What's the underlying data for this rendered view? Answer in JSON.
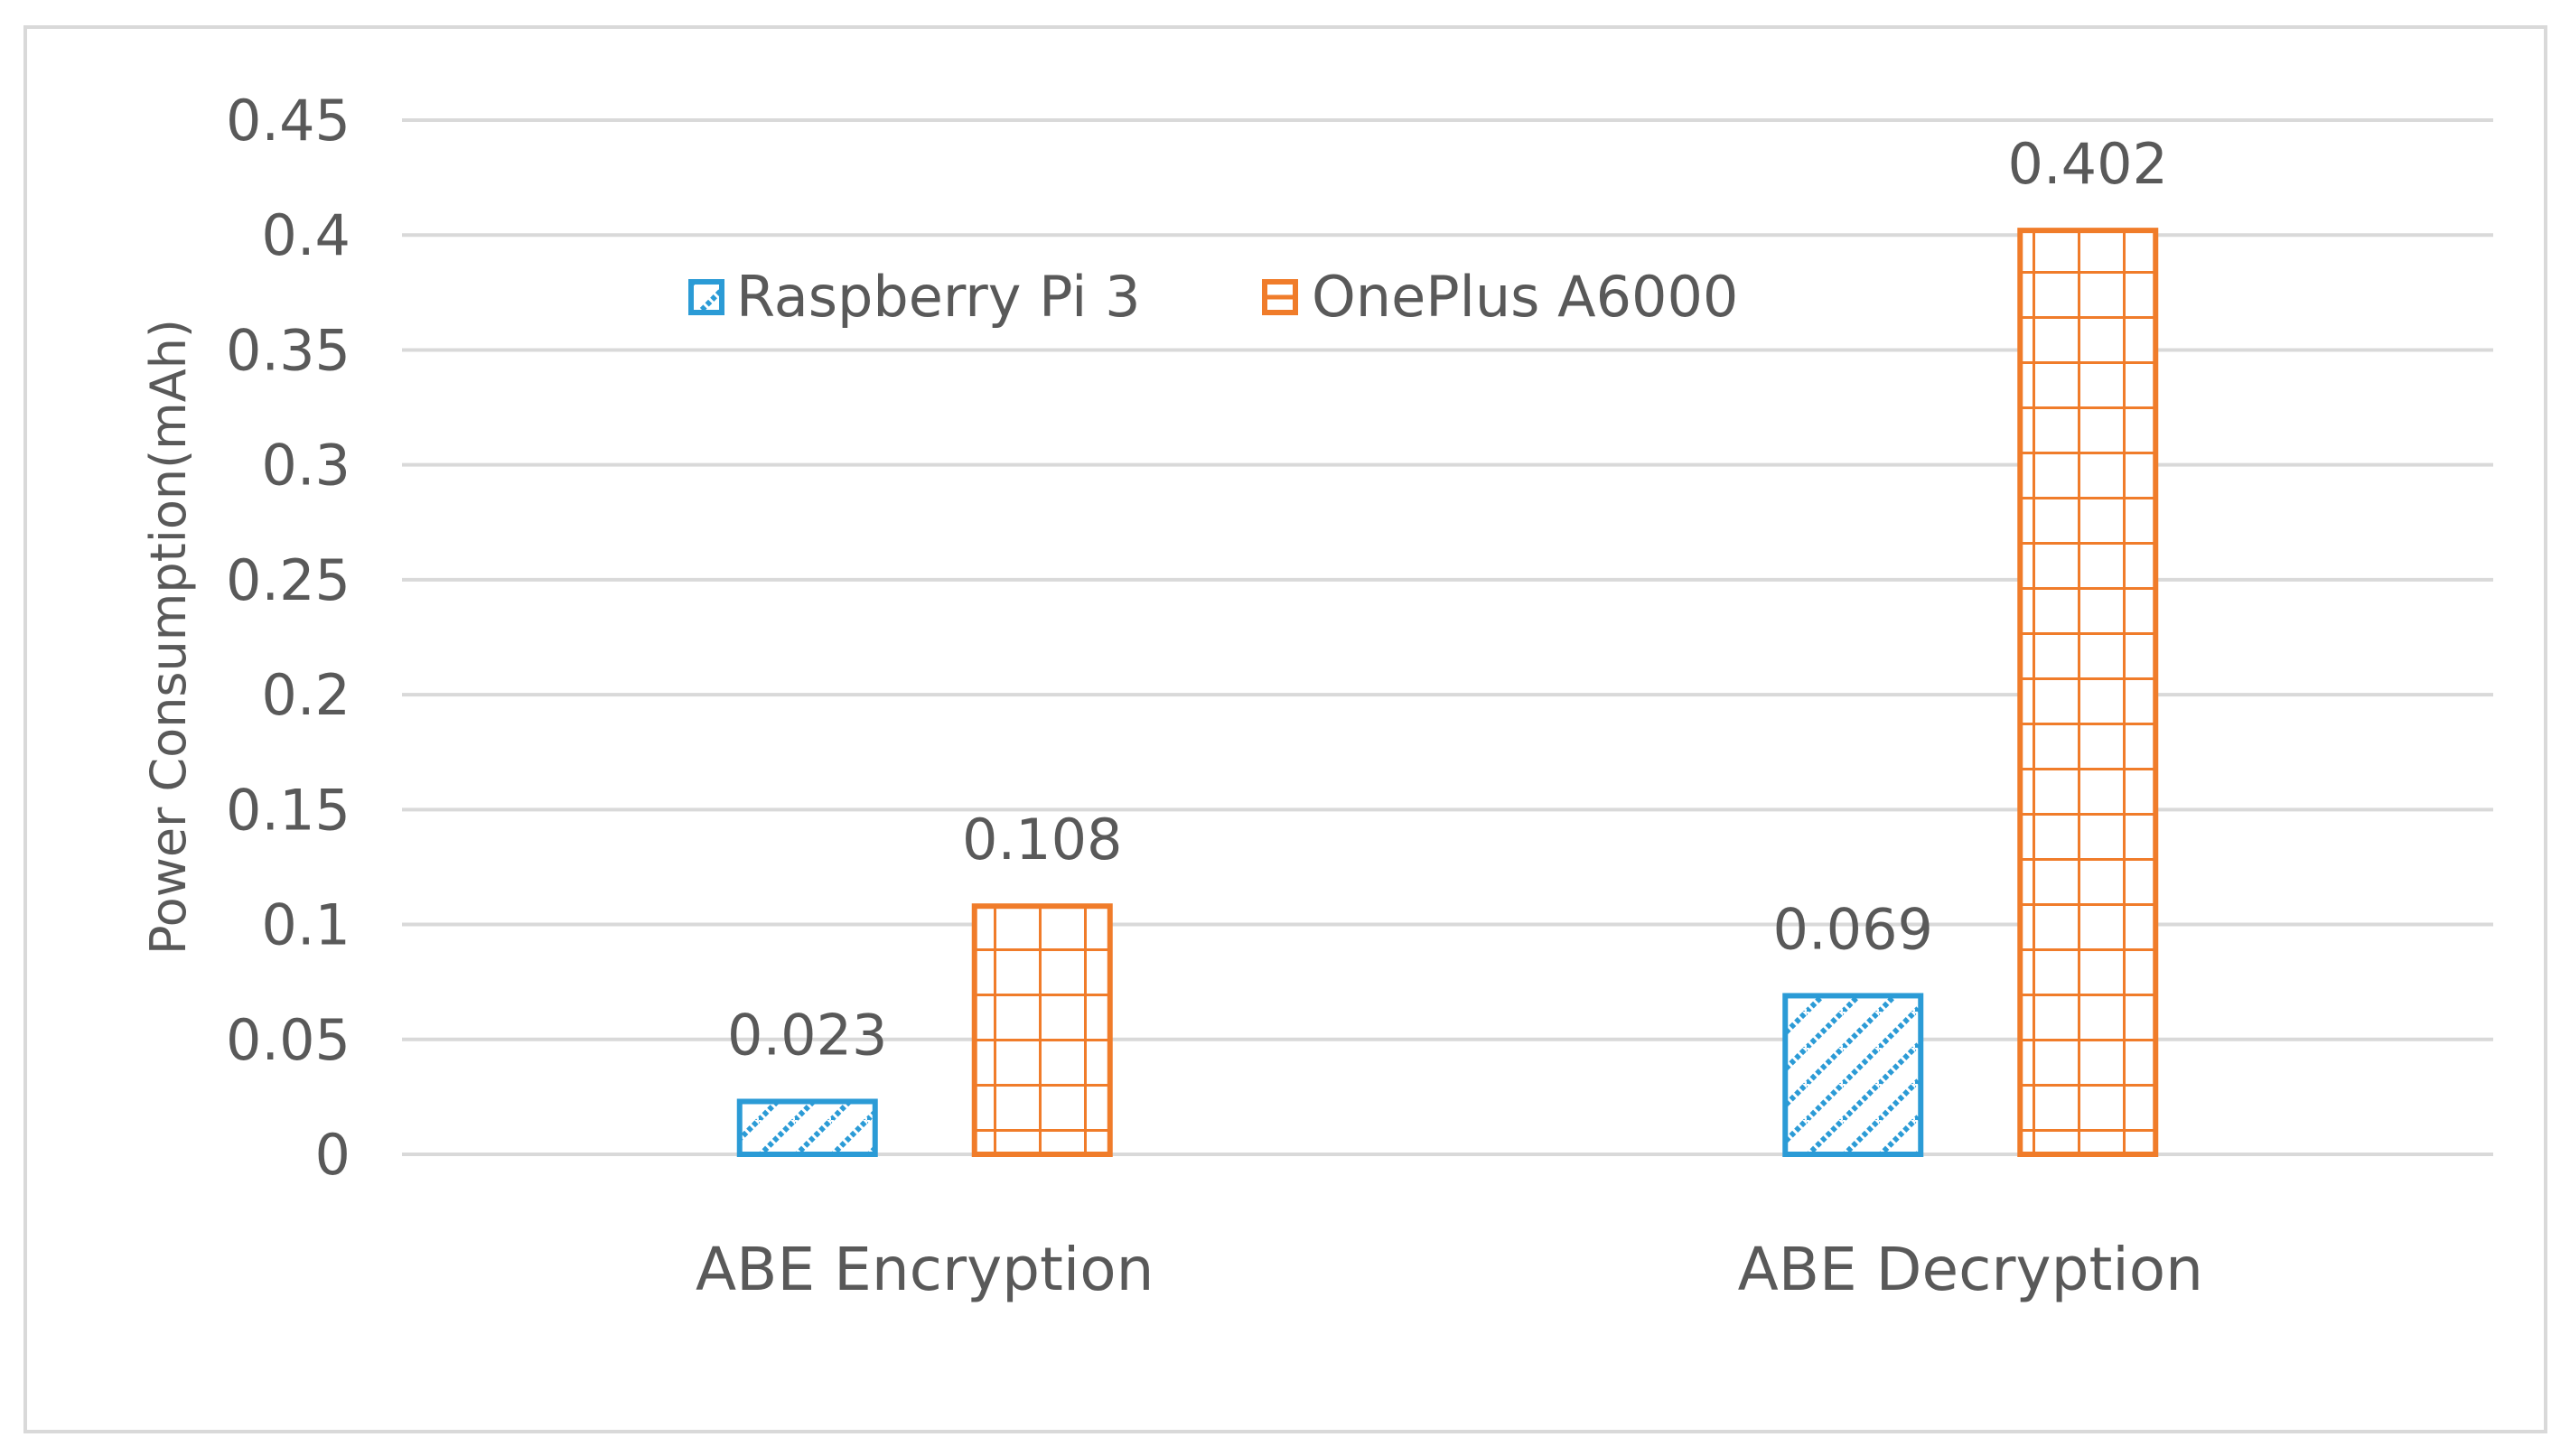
{
  "chart_data": {
    "type": "bar",
    "categories": [
      "ABE Encryption",
      "ABE Decryption"
    ],
    "series": [
      {
        "name": "Raspberry Pi 3",
        "values": [
          0.023,
          0.069
        ],
        "value_labels": [
          "0.023",
          "0.069"
        ],
        "color": "#2b9bd6",
        "pattern": "diagonal-hatch"
      },
      {
        "name": "OnePlus A6000",
        "values": [
          0.108,
          0.402
        ],
        "value_labels": [
          "0.108",
          "0.402"
        ],
        "color": "#f07c2a",
        "pattern": "grid"
      }
    ],
    "ylabel": "Power Consumption(mAh)",
    "ylim": [
      0,
      0.45
    ],
    "yticks": [
      0,
      0.05,
      0.1,
      0.15,
      0.2,
      0.25,
      0.3,
      0.35,
      0.4,
      0.45
    ],
    "ytick_labels": [
      "0",
      "0.05",
      "0.1",
      "0.15",
      "0.2",
      "0.25",
      "0.3",
      "0.35",
      "0.4",
      "0.45"
    ],
    "grid": "horizontal",
    "legend_position": "top-left inside plot"
  },
  "colors": {
    "gridline": "#d9d9d9",
    "text": "#595959",
    "frame": "#d9d9d9"
  }
}
